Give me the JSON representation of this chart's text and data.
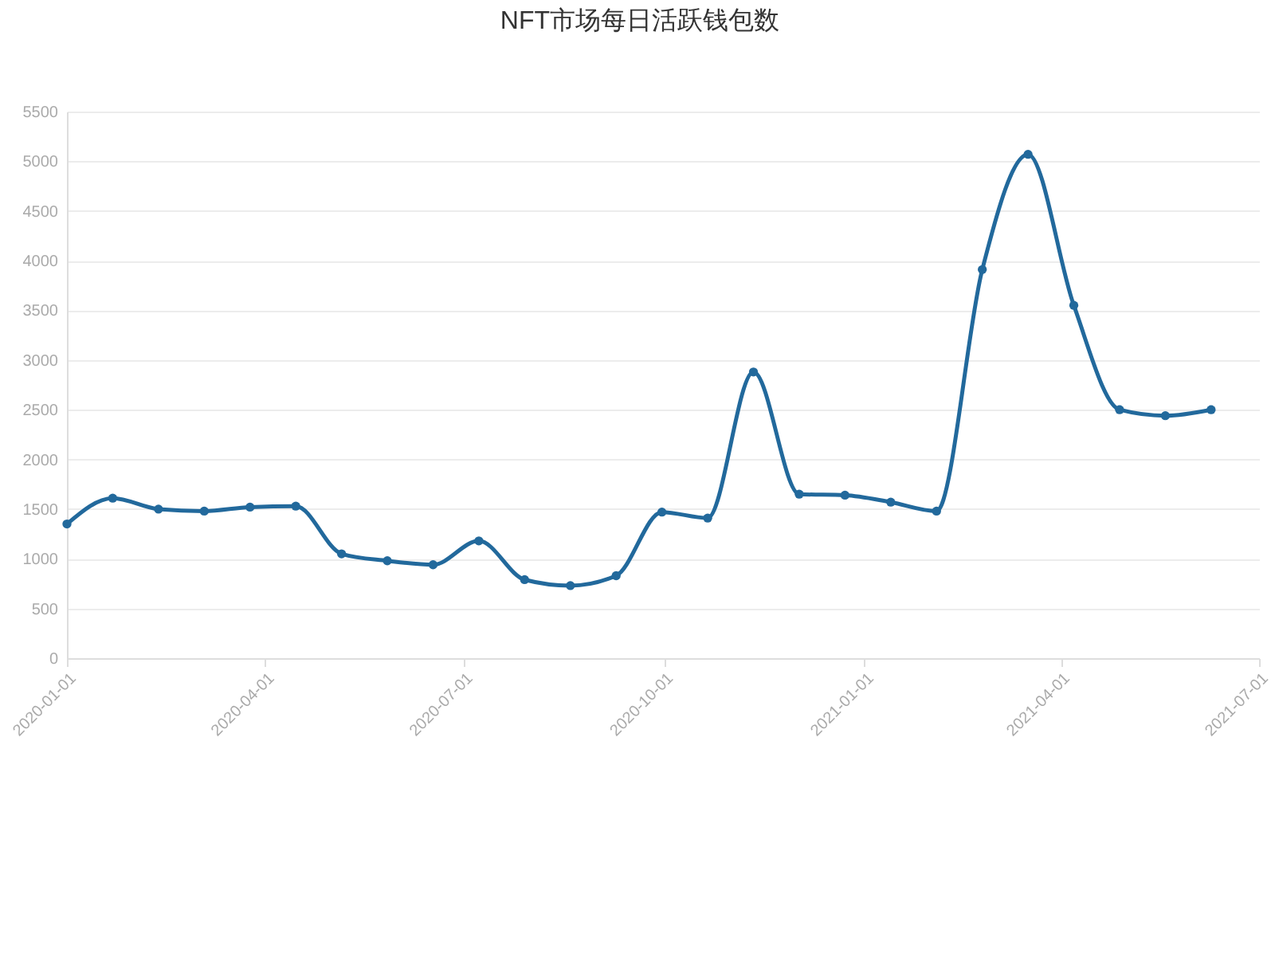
{
  "chart_data": {
    "type": "line",
    "title": "NFT市场每日活跃钱包数",
    "x": [
      "2020-01-01",
      "2020-01-22",
      "2020-02-12",
      "2020-03-04",
      "2020-03-25",
      "2020-04-15",
      "2020-05-06",
      "2020-05-27",
      "2020-06-17",
      "2020-07-08",
      "2020-07-29",
      "2020-08-19",
      "2020-09-09",
      "2020-09-30",
      "2020-10-21",
      "2020-11-11",
      "2020-12-02",
      "2020-12-23",
      "2021-01-13",
      "2021-02-03",
      "2021-02-24",
      "2021-03-17",
      "2021-04-07",
      "2021-04-28",
      "2021-05-19",
      "2021-06-09"
    ],
    "series": [
      {
        "color": "#22699c",
        "values": [
          1350,
          1610,
          1500,
          1480,
          1520,
          1530,
          1050,
          980,
          940,
          1180,
          790,
          730,
          830,
          1470,
          1410,
          2880,
          1650,
          1640,
          1570,
          1480,
          3910,
          5070,
          3550,
          2500,
          2440,
          2500
        ]
      }
    ],
    "xlim": [
      "2020-01-01",
      "2021-07-01"
    ],
    "xticks": [
      "2020-01-01",
      "2020-04-01",
      "2020-07-01",
      "2020-10-01",
      "2021-01-01",
      "2021-04-01",
      "2021-07-01"
    ],
    "ylim": [
      0,
      5500
    ],
    "yticks": [
      0,
      500,
      1000,
      1500,
      2000,
      2500,
      3000,
      3500,
      4000,
      4500,
      5000,
      5500
    ],
    "grid": "y",
    "marker": "circle",
    "line_style": "solid"
  }
}
